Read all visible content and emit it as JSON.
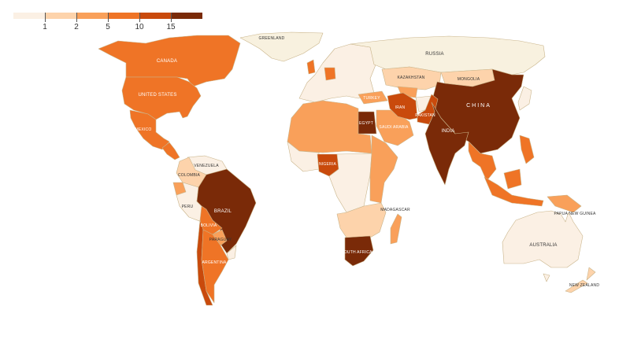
{
  "legend": {
    "ticks": [
      "1",
      "2",
      "5",
      "10",
      "15"
    ],
    "colors": [
      "#fbf0e4",
      "#fdd3ab",
      "#f9a05a",
      "#ef7426",
      "#c94a0c",
      "#7a2a08"
    ]
  },
  "no_data_color": "#f8f1df",
  "countries": {
    "greenland": {
      "label": "GREENLAND",
      "bin": null
    },
    "russia": {
      "label": "RUSSIA",
      "bin": null
    },
    "canada": {
      "label": "CANADA",
      "bin": 3
    },
    "united_states": {
      "label": "UNITED STATES",
      "bin": 3
    },
    "mexico": {
      "label": "MEXICO",
      "bin": 3
    },
    "central_america": {
      "label": "",
      "bin": 3
    },
    "colombia": {
      "label": "COLOMBIA",
      "bin": 1
    },
    "venezuela": {
      "label": "VENEZUELA",
      "bin": 0
    },
    "ecuador": {
      "label": "",
      "bin": 2
    },
    "peru": {
      "label": "PERU",
      "bin": 0
    },
    "brazil": {
      "label": "BRAZIL",
      "bin": 5
    },
    "bolivia": {
      "label": "BOLIVIA",
      "bin": 3
    },
    "paraguay": {
      "label": "PARAGUAY",
      "bin": 2
    },
    "chile": {
      "label": "",
      "bin": 4
    },
    "argentina": {
      "label": "ARGENTINA",
      "bin": 3
    },
    "uruguay": {
      "label": "",
      "bin": 0
    },
    "europe": {
      "label": "",
      "bin": 0
    },
    "germany": {
      "label": "",
      "bin": 3
    },
    "uk": {
      "label": "",
      "bin": 3
    },
    "north_africa": {
      "label": "",
      "bin": 2
    },
    "egypt": {
      "label": "EGYPT",
      "bin": 5
    },
    "west_africa": {
      "label": "",
      "bin": 0
    },
    "nigeria": {
      "label": "NIGERIA",
      "bin": 4
    },
    "east_africa": {
      "label": "",
      "bin": 2
    },
    "central_africa": {
      "label": "",
      "bin": 0
    },
    "southern_africa": {
      "label": "",
      "bin": 1
    },
    "south_africa": {
      "label": "SOUTH AFRICA",
      "bin": 5
    },
    "madagascar": {
      "label": "MADAGASCAR",
      "bin": 2
    },
    "turkey": {
      "label": "TURKEY",
      "bin": 2
    },
    "saudi_arabia": {
      "label": "SAUDI ARABIA",
      "bin": 2
    },
    "iran": {
      "label": "IRAN",
      "bin": 4
    },
    "pakistan": {
      "label": "PAKISTAN",
      "bin": 4
    },
    "afghanistan": {
      "label": "",
      "bin": 0
    },
    "kazakhstan": {
      "label": "KAZAKHSTAN",
      "bin": 1
    },
    "uzbekistan": {
      "label": "",
      "bin": 2
    },
    "mongolia": {
      "label": "MONGOLIA",
      "bin": 1
    },
    "china": {
      "label": "CHINA",
      "bin": 5
    },
    "india": {
      "label": "INDIA",
      "bin": 5
    },
    "southeast_asia": {
      "label": "",
      "bin": 3
    },
    "japan": {
      "label": "",
      "bin": 0
    },
    "philippines": {
      "label": "",
      "bin": 3
    },
    "indonesia": {
      "label": "",
      "bin": 3
    },
    "papua_new_guinea": {
      "label": "PAPUA NEW GUINEA",
      "bin": 2
    },
    "australia": {
      "label": "AUSTRALIA",
      "bin": 0
    },
    "new_zealand": {
      "label": "NEW ZEALAND",
      "bin": 1
    }
  }
}
